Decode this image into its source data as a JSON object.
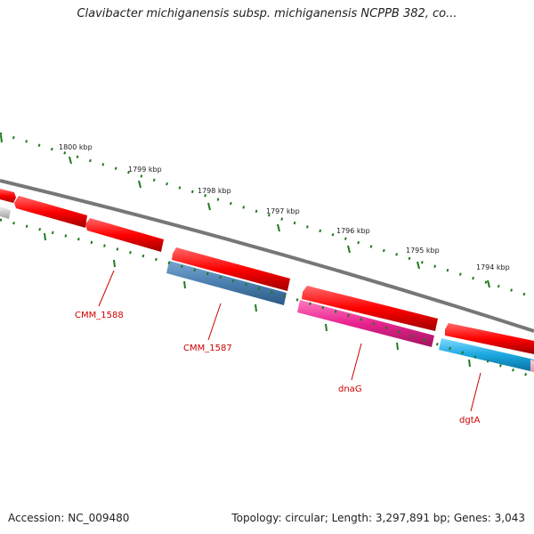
{
  "title": "Clavibacter michiganensis subsp. michiganensis NCPPB 382, co...",
  "footer": {
    "accession": "Accession: NC_009480",
    "summary": "Topology: circular; Length: 3,297,891 bp; Genes: 3,043"
  },
  "scale": {
    "ticks": [
      "1800 kbp",
      "1799 kbp",
      "1798 kbp",
      "1797 kbp",
      "1796 kbp",
      "1795 kbp",
      "1794 kbp"
    ]
  },
  "genes": [
    {
      "label": "CMM_1588",
      "strand": "reverse",
      "color": "#4a7faf"
    },
    {
      "label": "CMM_1587",
      "strand": "reverse",
      "color": "#4a7faf"
    },
    {
      "label": "dnaG",
      "strand": "reverse",
      "color": "#e8238f"
    },
    {
      "label": "dgtA",
      "strand": "reverse",
      "color": "#1aa7e0"
    }
  ],
  "colors": {
    "forward_cds": "#ff0000",
    "backbone": "#777777",
    "tick": "#1f7a1f",
    "label": "#cc0000"
  }
}
